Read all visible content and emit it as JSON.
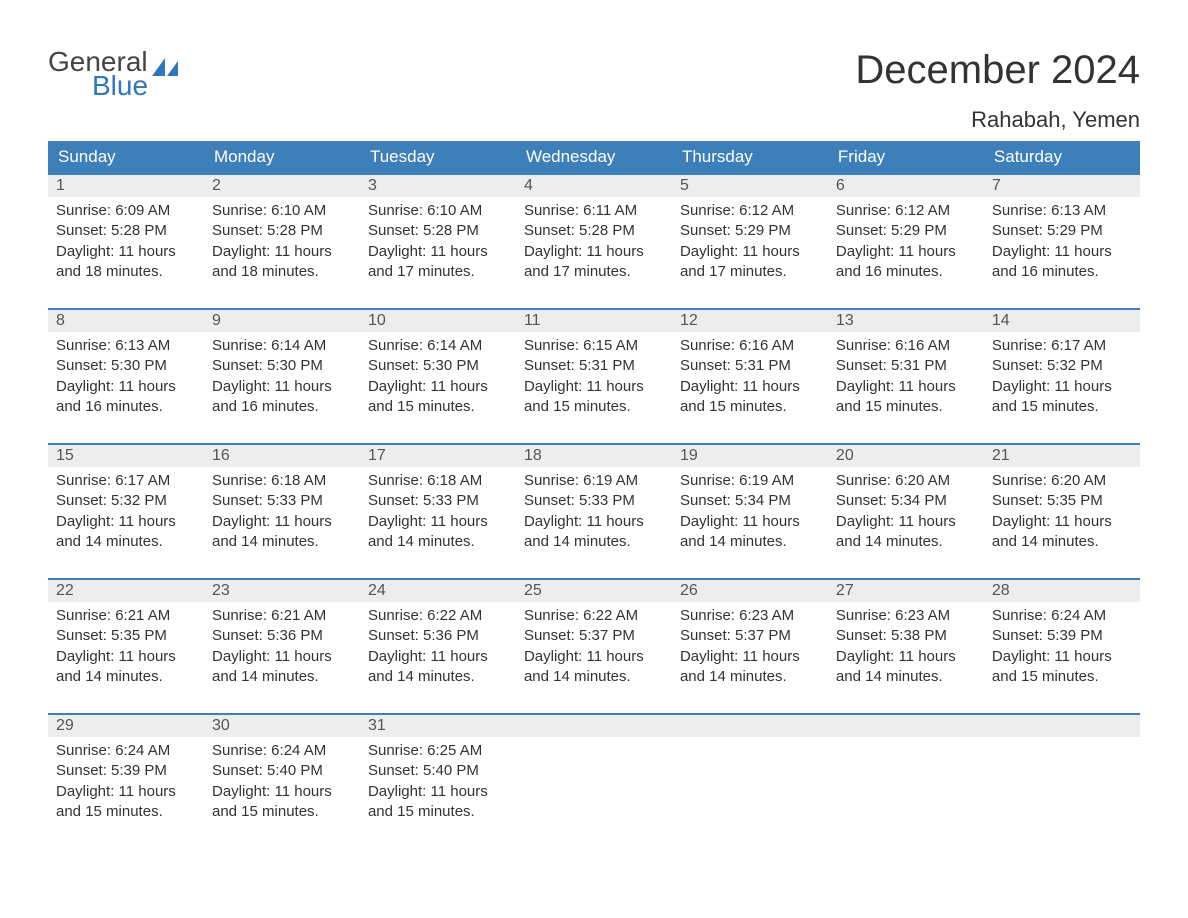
{
  "logo": {
    "word1": "General",
    "word2": "Blue"
  },
  "title": "December 2024",
  "location": "Rahabah, Yemen",
  "colors": {
    "header_bg": "#3c7fb9",
    "header_text": "#ffffff",
    "daynum_bg": "#ededed",
    "daynum_border": "#3c7fb9",
    "text": "#333333",
    "logo_blue": "#2f78bd"
  },
  "day_headers": [
    "Sunday",
    "Monday",
    "Tuesday",
    "Wednesday",
    "Thursday",
    "Friday",
    "Saturday"
  ],
  "weeks": [
    [
      {
        "n": "1",
        "sunrise": "6:09 AM",
        "sunset": "5:28 PM",
        "daylight": "11 hours and 18 minutes."
      },
      {
        "n": "2",
        "sunrise": "6:10 AM",
        "sunset": "5:28 PM",
        "daylight": "11 hours and 18 minutes."
      },
      {
        "n": "3",
        "sunrise": "6:10 AM",
        "sunset": "5:28 PM",
        "daylight": "11 hours and 17 minutes."
      },
      {
        "n": "4",
        "sunrise": "6:11 AM",
        "sunset": "5:28 PM",
        "daylight": "11 hours and 17 minutes."
      },
      {
        "n": "5",
        "sunrise": "6:12 AM",
        "sunset": "5:29 PM",
        "daylight": "11 hours and 17 minutes."
      },
      {
        "n": "6",
        "sunrise": "6:12 AM",
        "sunset": "5:29 PM",
        "daylight": "11 hours and 16 minutes."
      },
      {
        "n": "7",
        "sunrise": "6:13 AM",
        "sunset": "5:29 PM",
        "daylight": "11 hours and 16 minutes."
      }
    ],
    [
      {
        "n": "8",
        "sunrise": "6:13 AM",
        "sunset": "5:30 PM",
        "daylight": "11 hours and 16 minutes."
      },
      {
        "n": "9",
        "sunrise": "6:14 AM",
        "sunset": "5:30 PM",
        "daylight": "11 hours and 16 minutes."
      },
      {
        "n": "10",
        "sunrise": "6:14 AM",
        "sunset": "5:30 PM",
        "daylight": "11 hours and 15 minutes."
      },
      {
        "n": "11",
        "sunrise": "6:15 AM",
        "sunset": "5:31 PM",
        "daylight": "11 hours and 15 minutes."
      },
      {
        "n": "12",
        "sunrise": "6:16 AM",
        "sunset": "5:31 PM",
        "daylight": "11 hours and 15 minutes."
      },
      {
        "n": "13",
        "sunrise": "6:16 AM",
        "sunset": "5:31 PM",
        "daylight": "11 hours and 15 minutes."
      },
      {
        "n": "14",
        "sunrise": "6:17 AM",
        "sunset": "5:32 PM",
        "daylight": "11 hours and 15 minutes."
      }
    ],
    [
      {
        "n": "15",
        "sunrise": "6:17 AM",
        "sunset": "5:32 PM",
        "daylight": "11 hours and 14 minutes."
      },
      {
        "n": "16",
        "sunrise": "6:18 AM",
        "sunset": "5:33 PM",
        "daylight": "11 hours and 14 minutes."
      },
      {
        "n": "17",
        "sunrise": "6:18 AM",
        "sunset": "5:33 PM",
        "daylight": "11 hours and 14 minutes."
      },
      {
        "n": "18",
        "sunrise": "6:19 AM",
        "sunset": "5:33 PM",
        "daylight": "11 hours and 14 minutes."
      },
      {
        "n": "19",
        "sunrise": "6:19 AM",
        "sunset": "5:34 PM",
        "daylight": "11 hours and 14 minutes."
      },
      {
        "n": "20",
        "sunrise": "6:20 AM",
        "sunset": "5:34 PM",
        "daylight": "11 hours and 14 minutes."
      },
      {
        "n": "21",
        "sunrise": "6:20 AM",
        "sunset": "5:35 PM",
        "daylight": "11 hours and 14 minutes."
      }
    ],
    [
      {
        "n": "22",
        "sunrise": "6:21 AM",
        "sunset": "5:35 PM",
        "daylight": "11 hours and 14 minutes."
      },
      {
        "n": "23",
        "sunrise": "6:21 AM",
        "sunset": "5:36 PM",
        "daylight": "11 hours and 14 minutes."
      },
      {
        "n": "24",
        "sunrise": "6:22 AM",
        "sunset": "5:36 PM",
        "daylight": "11 hours and 14 minutes."
      },
      {
        "n": "25",
        "sunrise": "6:22 AM",
        "sunset": "5:37 PM",
        "daylight": "11 hours and 14 minutes."
      },
      {
        "n": "26",
        "sunrise": "6:23 AM",
        "sunset": "5:37 PM",
        "daylight": "11 hours and 14 minutes."
      },
      {
        "n": "27",
        "sunrise": "6:23 AM",
        "sunset": "5:38 PM",
        "daylight": "11 hours and 14 minutes."
      },
      {
        "n": "28",
        "sunrise": "6:24 AM",
        "sunset": "5:39 PM",
        "daylight": "11 hours and 15 minutes."
      }
    ],
    [
      {
        "n": "29",
        "sunrise": "6:24 AM",
        "sunset": "5:39 PM",
        "daylight": "11 hours and 15 minutes."
      },
      {
        "n": "30",
        "sunrise": "6:24 AM",
        "sunset": "5:40 PM",
        "daylight": "11 hours and 15 minutes."
      },
      {
        "n": "31",
        "sunrise": "6:25 AM",
        "sunset": "5:40 PM",
        "daylight": "11 hours and 15 minutes."
      },
      null,
      null,
      null,
      null
    ]
  ],
  "labels": {
    "sunrise_prefix": "Sunrise: ",
    "sunset_prefix": "Sunset: ",
    "daylight_prefix": "Daylight: "
  }
}
